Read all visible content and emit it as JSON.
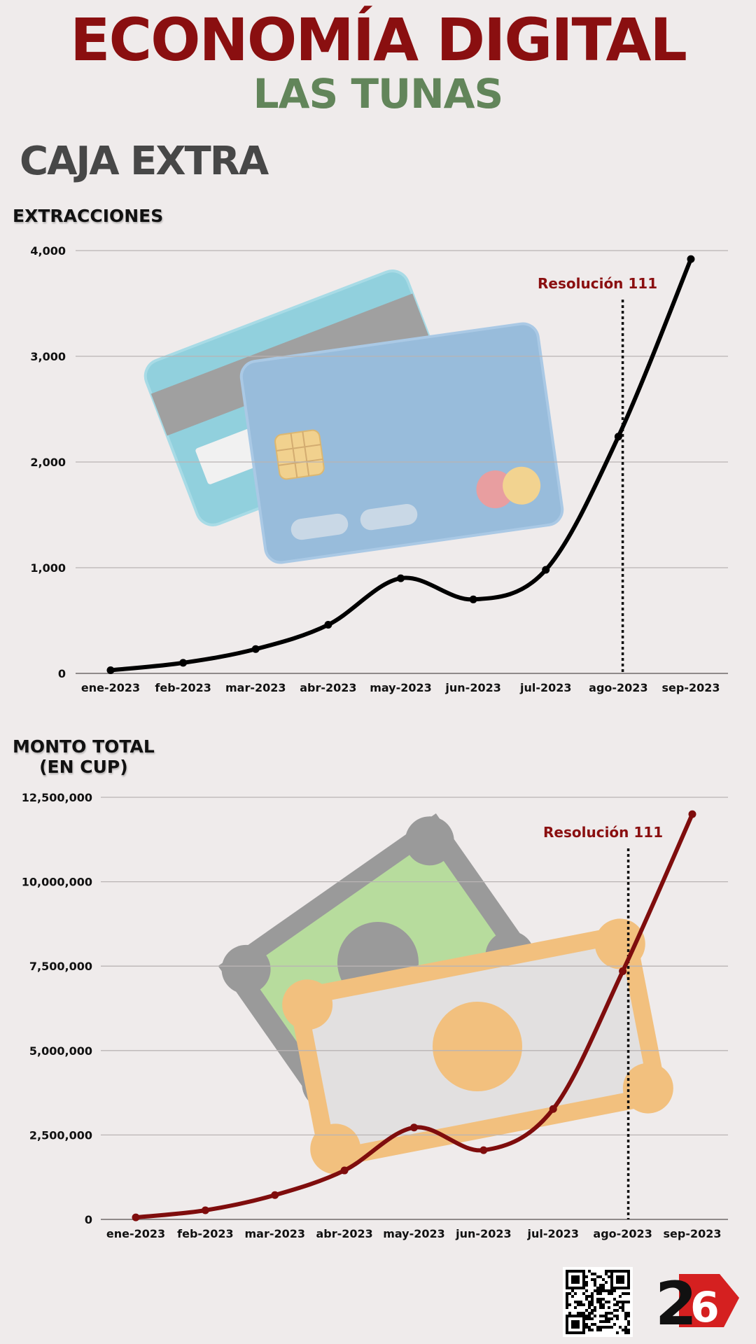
{
  "header": {
    "title": "ECONOMÍA DIGITAL",
    "subtitle": "LAS TUNAS",
    "section": "CAJA EXTRA"
  },
  "colors": {
    "title": "#8a0f10",
    "subtitle": "#62855a",
    "section": "#474747",
    "line1": "#000000",
    "line2": "#7f0d0d",
    "annotation": "#8a0f10",
    "grid": "#b9b4b4"
  },
  "chart_data": [
    {
      "type": "line",
      "title": "EXTRACCIONES",
      "categories": [
        "ene-2023",
        "feb-2023",
        "mar-2023",
        "abr-2023",
        "may-2023",
        "jun-2023",
        "jul-2023",
        "ago-2023",
        "sep-2023"
      ],
      "values": [
        30,
        100,
        230,
        460,
        900,
        700,
        980,
        2240,
        3920
      ],
      "ylim": [
        0,
        4000
      ],
      "yticks": [
        0,
        1000,
        2000,
        3000,
        4000
      ],
      "ytick_labels": [
        "0",
        "1,000",
        "2,000",
        "3,000",
        "4,000"
      ],
      "grid": true,
      "annotation": {
        "label": "Resolución 111",
        "category_index": 7.06
      },
      "illustration": "credit-cards"
    },
    {
      "type": "line",
      "title": "MONTO TOTAL\n(EN CUP)",
      "categories": [
        "ene-2023",
        "feb-2023",
        "mar-2023",
        "abr-2023",
        "may-2023",
        "jun-2023",
        "jul-2023",
        "ago-2023",
        "sep-2023"
      ],
      "values": [
        60000,
        270000,
        720000,
        1450000,
        2720000,
        2050000,
        3270000,
        7350000,
        12000000
      ],
      "ylim": [
        0,
        12500000
      ],
      "yticks": [
        0,
        2500000,
        5000000,
        7500000,
        10000000,
        12500000
      ],
      "ytick_labels": [
        "0",
        "2,500,000",
        "5,000,000",
        "7,500,000",
        "10,000,000",
        "12,500,000"
      ],
      "grid": true,
      "annotation": {
        "label": "Resolución 111",
        "category_index": 7.08
      },
      "illustration": "banknotes"
    }
  ],
  "footer": {
    "qr": "qr-code-icon",
    "logo": "tiempo21-logo"
  }
}
